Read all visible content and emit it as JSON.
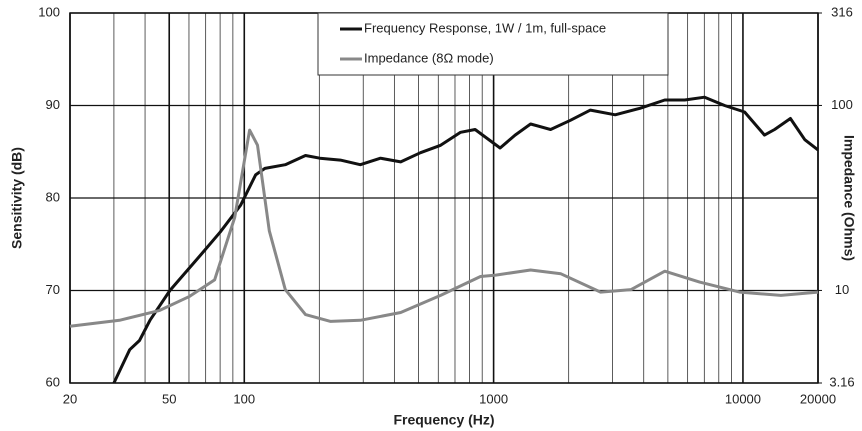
{
  "chart_data": {
    "type": "line",
    "xlabel": "Frequency (Hz)",
    "ylabel": "Sensitivity (dB)",
    "y2label": "Impedance (Ohms)",
    "xscale": "log",
    "y2scale": "log",
    "xlim": [
      20,
      20000
    ],
    "xticks": [
      20,
      50,
      100,
      1000,
      10000,
      20000
    ],
    "xgrid": [
      30,
      40,
      60,
      70,
      80,
      90,
      200,
      300,
      400,
      500,
      600,
      700,
      800,
      900,
      2000,
      3000,
      4000,
      5000,
      6000,
      7000,
      8000,
      9000
    ],
    "ylim": [
      60,
      100
    ],
    "yticks": [
      60,
      70,
      80,
      90,
      100
    ],
    "y2lim": [
      3.16,
      316
    ],
    "y2ticks": [
      3.16,
      10,
      100,
      316
    ],
    "grid": true,
    "legend": "top",
    "series": [
      {
        "name": "Frequency Response, 1W / 1m, full-space",
        "color": "#111111",
        "x": [
          30,
          34.7,
          38,
          41.9,
          50.3,
          66.6,
          80,
          96.6,
          111,
          121,
          146,
          176,
          201,
          243,
          292,
          352,
          424,
          509,
          613,
          737,
          843,
          1062,
          1220,
          1407,
          1692,
          2033,
          2444,
          3073,
          3866,
          4860,
          5840,
          7020,
          8440,
          10150,
          12200,
          13400,
          15500,
          17700,
          20000
        ],
        "values": [
          60,
          63.6,
          64.6,
          66.8,
          70,
          73.8,
          76.3,
          79.2,
          82.5,
          83.2,
          83.6,
          84.6,
          84.3,
          84.1,
          83.6,
          84.3,
          83.9,
          84.9,
          85.7,
          87.1,
          87.4,
          85.4,
          86.8,
          88,
          87.4,
          88.4,
          89.5,
          89,
          89.7,
          90.6,
          90.6,
          90.9,
          90,
          89.3,
          86.8,
          87.4,
          88.6,
          86.3,
          85.2
        ]
      },
      {
        "name": "Impedance (8Ω mode)",
        "color": "#888888",
        "axis": "y2",
        "x": [
          20,
          31.6,
          45.8,
          60.4,
          76,
          91.5,
          105,
          113,
          126,
          146,
          176,
          222,
          292,
          424,
          613,
          886,
          1020,
          1407,
          1861,
          2685,
          3560,
          4860,
          6700,
          9700,
          14200,
          20000
        ],
        "values": [
          6.4,
          6.9,
          7.8,
          9.3,
          11.4,
          24.8,
          73.6,
          61,
          21,
          10.1,
          7.4,
          6.8,
          6.9,
          7.6,
          9.4,
          11.9,
          12.1,
          12.9,
          12.3,
          9.8,
          10.1,
          12.7,
          11.1,
          9.8,
          9.4,
          9.8
        ]
      }
    ]
  }
}
